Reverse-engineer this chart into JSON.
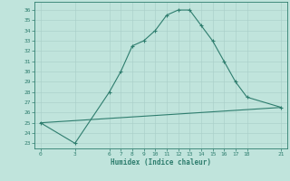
{
  "xlabel": "Humidex (Indice chaleur)",
  "line1_x": [
    0,
    3,
    6,
    7,
    8,
    9,
    10,
    11,
    12,
    13,
    14,
    15,
    16,
    17,
    18,
    21
  ],
  "line1_y": [
    25,
    23,
    28,
    30,
    32.5,
    33,
    34,
    35.5,
    36,
    36,
    34.5,
    33,
    31,
    29,
    27.5,
    26.5
  ],
  "line2_x": [
    0,
    21
  ],
  "line2_y": [
    25,
    26.5
  ],
  "color": "#2e7d6e",
  "bg_color": "#c0e4dc",
  "grid_color": "#a8cec8",
  "yticks": [
    23,
    24,
    25,
    26,
    27,
    28,
    29,
    30,
    31,
    32,
    33,
    34,
    35,
    36
  ],
  "xticks": [
    0,
    3,
    6,
    7,
    8,
    9,
    10,
    11,
    12,
    13,
    14,
    15,
    16,
    17,
    18,
    21
  ],
  "ylim": [
    22.5,
    36.8
  ],
  "xlim": [
    -0.5,
    21.5
  ]
}
